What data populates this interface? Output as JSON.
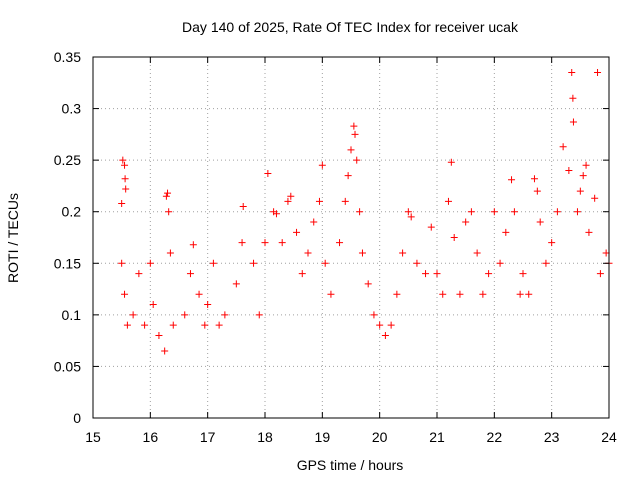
{
  "chart_data": {
    "type": "scatter",
    "title": "Day 140 of 2025, Rate Of TEC Index for receiver ucak",
    "xlabel": "GPS time / hours",
    "ylabel": "ROTI / TECUs",
    "xlim": [
      15,
      24
    ],
    "ylim": [
      0,
      0.35
    ],
    "xticks": [
      "15",
      "16",
      "17",
      "18",
      "19",
      "20",
      "21",
      "22",
      "23",
      "24"
    ],
    "yticks": [
      "0",
      "0.05",
      "0.1",
      "0.15",
      "0.2",
      "0.25",
      "0.3",
      "0.35"
    ],
    "grid": true,
    "marker": "plus",
    "color": "#ff0000",
    "series": [
      {
        "name": "ROTI",
        "points": [
          [
            15.5,
            0.208
          ],
          [
            15.52,
            0.25
          ],
          [
            15.55,
            0.245
          ],
          [
            15.57,
            0.222
          ],
          [
            15.56,
            0.232
          ],
          [
            15.5,
            0.15
          ],
          [
            15.55,
            0.12
          ],
          [
            15.6,
            0.09
          ],
          [
            15.7,
            0.1
          ],
          [
            15.8,
            0.14
          ],
          [
            15.9,
            0.09
          ],
          [
            16.0,
            0.15
          ],
          [
            16.05,
            0.11
          ],
          [
            16.15,
            0.08
          ],
          [
            16.25,
            0.065
          ],
          [
            16.28,
            0.215
          ],
          [
            16.3,
            0.218
          ],
          [
            16.32,
            0.2
          ],
          [
            16.35,
            0.16
          ],
          [
            16.4,
            0.09
          ],
          [
            16.6,
            0.1
          ],
          [
            16.7,
            0.14
          ],
          [
            16.75,
            0.168
          ],
          [
            16.85,
            0.12
          ],
          [
            16.95,
            0.09
          ],
          [
            17.0,
            0.11
          ],
          [
            17.1,
            0.15
          ],
          [
            17.2,
            0.09
          ],
          [
            17.3,
            0.1
          ],
          [
            17.5,
            0.13
          ],
          [
            17.6,
            0.17
          ],
          [
            17.62,
            0.205
          ],
          [
            17.8,
            0.15
          ],
          [
            17.9,
            0.1
          ],
          [
            18.0,
            0.17
          ],
          [
            18.05,
            0.237
          ],
          [
            18.15,
            0.2
          ],
          [
            18.2,
            0.198
          ],
          [
            18.3,
            0.17
          ],
          [
            18.4,
            0.21
          ],
          [
            18.45,
            0.215
          ],
          [
            18.55,
            0.18
          ],
          [
            18.65,
            0.14
          ],
          [
            18.75,
            0.16
          ],
          [
            18.85,
            0.19
          ],
          [
            18.95,
            0.21
          ],
          [
            19.0,
            0.245
          ],
          [
            19.05,
            0.15
          ],
          [
            19.15,
            0.12
          ],
          [
            19.3,
            0.17
          ],
          [
            19.4,
            0.21
          ],
          [
            19.45,
            0.235
          ],
          [
            19.5,
            0.26
          ],
          [
            19.55,
            0.283
          ],
          [
            19.57,
            0.275
          ],
          [
            19.6,
            0.25
          ],
          [
            19.65,
            0.2
          ],
          [
            19.7,
            0.16
          ],
          [
            19.8,
            0.13
          ],
          [
            19.9,
            0.1
          ],
          [
            20.0,
            0.09
          ],
          [
            20.1,
            0.08
          ],
          [
            20.2,
            0.09
          ],
          [
            20.3,
            0.12
          ],
          [
            20.4,
            0.16
          ],
          [
            20.5,
            0.2
          ],
          [
            20.55,
            0.195
          ],
          [
            20.65,
            0.15
          ],
          [
            20.8,
            0.14
          ],
          [
            20.9,
            0.185
          ],
          [
            21.0,
            0.14
          ],
          [
            21.1,
            0.12
          ],
          [
            21.2,
            0.21
          ],
          [
            21.25,
            0.248
          ],
          [
            21.3,
            0.175
          ],
          [
            21.4,
            0.12
          ],
          [
            21.5,
            0.19
          ],
          [
            21.6,
            0.2
          ],
          [
            21.7,
            0.16
          ],
          [
            21.8,
            0.12
          ],
          [
            21.9,
            0.14
          ],
          [
            22.0,
            0.2
          ],
          [
            22.1,
            0.15
          ],
          [
            22.2,
            0.18
          ],
          [
            22.3,
            0.231
          ],
          [
            22.35,
            0.2
          ],
          [
            22.45,
            0.12
          ],
          [
            22.5,
            0.14
          ],
          [
            22.6,
            0.12
          ],
          [
            22.7,
            0.232
          ],
          [
            22.75,
            0.22
          ],
          [
            22.8,
            0.19
          ],
          [
            22.9,
            0.15
          ],
          [
            23.0,
            0.17
          ],
          [
            23.1,
            0.2
          ],
          [
            23.2,
            0.263
          ],
          [
            23.3,
            0.24
          ],
          [
            23.35,
            0.335
          ],
          [
            23.37,
            0.31
          ],
          [
            23.38,
            0.287
          ],
          [
            23.45,
            0.2
          ],
          [
            23.5,
            0.22
          ],
          [
            23.55,
            0.235
          ],
          [
            23.6,
            0.245
          ],
          [
            23.65,
            0.18
          ],
          [
            23.75,
            0.213
          ],
          [
            23.8,
            0.335
          ],
          [
            23.85,
            0.14
          ],
          [
            23.95,
            0.16
          ],
          [
            24.0,
            0.15
          ]
        ]
      }
    ]
  }
}
